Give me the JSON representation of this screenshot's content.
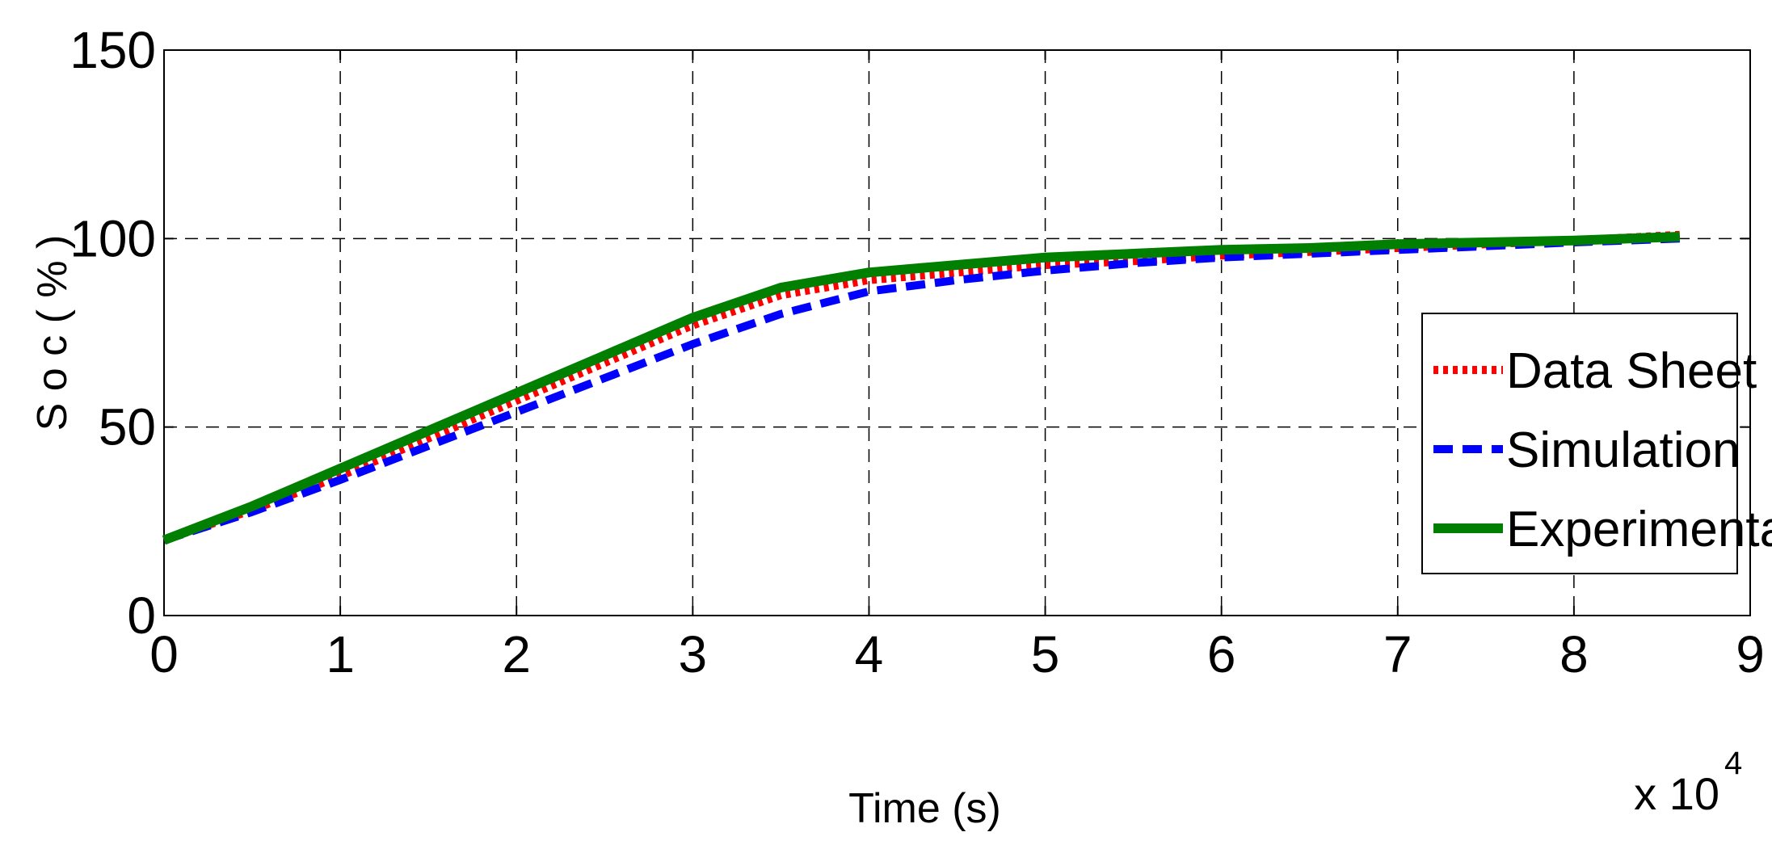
{
  "chart_data": {
    "type": "line",
    "title": "",
    "xlabel": "Time (s)",
    "ylabel": "S o c ( % )",
    "x_exponent_label": {
      "base": "x 10",
      "power": "4"
    },
    "xlim": [
      0,
      9
    ],
    "ylim": [
      0,
      150
    ],
    "x_ticks": [
      "0",
      "1",
      "2",
      "3",
      "4",
      "5",
      "6",
      "7",
      "8",
      "9"
    ],
    "y_ticks": [
      "0",
      "50",
      "100",
      "150"
    ],
    "grid": true,
    "legend_position": "right",
    "series": [
      {
        "name": "Data Sheet",
        "color": "#ff0000",
        "style": "dotted",
        "x": [
          0,
          0.5,
          1,
          1.5,
          2,
          2.5,
          3,
          3.5,
          4,
          4.5,
          5,
          5.5,
          6,
          6.5,
          7,
          7.5,
          8,
          8.6
        ],
        "y": [
          20,
          28,
          37,
          47,
          57,
          67,
          77,
          85,
          89,
          91,
          93,
          94,
          95.5,
          96.5,
          97.5,
          98.5,
          99.5,
          101
        ]
      },
      {
        "name": "Simulation",
        "color": "#0000ff",
        "style": "dashed",
        "x": [
          0,
          0.5,
          1,
          1.5,
          2,
          2.5,
          3,
          3.5,
          4,
          4.5,
          5,
          5.5,
          6,
          6.5,
          7,
          7.5,
          8,
          8.6
        ],
        "y": [
          20,
          27.5,
          36,
          45,
          54,
          63,
          72,
          80,
          86,
          89,
          91.5,
          93.5,
          95,
          96,
          97,
          98,
          99,
          100
        ]
      },
      {
        "name": "Experimental",
        "color": "#007f00",
        "style": "solid",
        "x": [
          0,
          0.5,
          1,
          1.5,
          2,
          2.5,
          3,
          3.5,
          4,
          4.5,
          5,
          5.5,
          6,
          6.5,
          7,
          7.5,
          8,
          8.6
        ],
        "y": [
          20,
          29,
          39,
          49,
          59,
          69,
          79,
          87,
          91,
          93,
          95,
          96,
          97,
          97.5,
          98.5,
          99,
          99.5,
          100.5
        ]
      }
    ]
  }
}
